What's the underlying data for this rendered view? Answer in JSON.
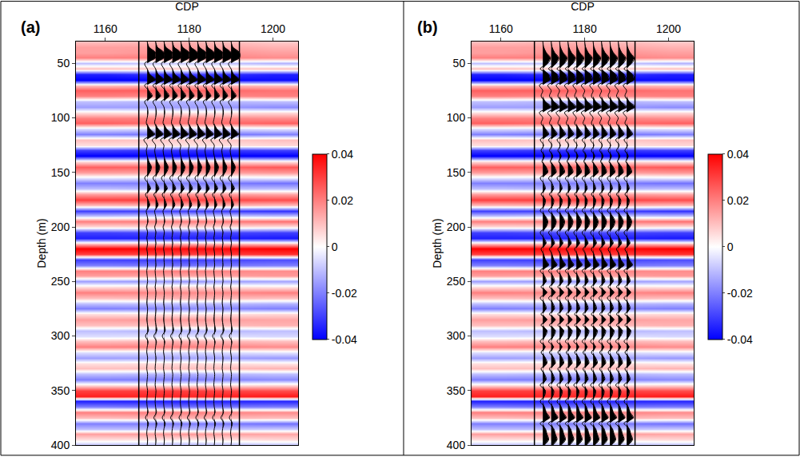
{
  "chart_data": [
    {
      "type": "heatmap",
      "panel": "(a)",
      "x_label": "CDP",
      "y_label": "Depth (m)",
      "xlim": [
        1153,
        1206
      ],
      "xticks": [
        1160,
        1180,
        1200
      ],
      "ylim": [
        400,
        30
      ],
      "yticks": [
        50,
        100,
        150,
        200,
        250,
        300,
        350,
        400
      ],
      "heatmap": {
        "x": [
          1160,
          1180,
          1200
        ],
        "y": [
          30,
          35,
          40,
          45,
          50,
          55,
          60,
          65,
          70,
          75,
          80,
          85,
          90,
          95,
          100,
          105,
          110,
          115,
          120,
          125,
          130,
          135,
          140,
          145,
          150,
          155,
          160,
          165,
          170,
          175,
          180,
          185,
          190,
          195,
          200,
          205,
          210,
          215,
          220,
          225,
          230,
          235,
          240,
          245,
          250,
          255,
          260,
          265,
          270,
          275,
          280,
          285,
          290,
          295,
          300,
          305,
          310,
          315,
          320,
          325,
          330,
          335,
          340,
          345,
          350,
          355,
          360,
          365,
          370,
          375,
          380,
          385,
          390,
          395,
          400
        ],
        "z": [
          [
            0.01,
            0.012,
            0.008
          ],
          [
            0.015,
            0.015,
            0.012
          ],
          [
            0.015,
            0.018,
            0.015
          ],
          [
            0.02,
            0.02,
            0.018
          ],
          [
            -0.01,
            -0.008,
            -0.012
          ],
          [
            0.01,
            0.008,
            0.01
          ],
          [
            -0.035,
            -0.03,
            -0.035
          ],
          [
            -0.04,
            -0.04,
            -0.038
          ],
          [
            0.01,
            0.012,
            0.01
          ],
          [
            0.025,
            0.025,
            0.022
          ],
          [
            0.02,
            0.018,
            0.02
          ],
          [
            -0.01,
            -0.012,
            -0.01
          ],
          [
            -0.015,
            -0.015,
            -0.018
          ],
          [
            0.005,
            0.004,
            0.006
          ],
          [
            0.02,
            0.02,
            0.018
          ],
          [
            0.025,
            0.022,
            0.025
          ],
          [
            -0.005,
            -0.006,
            -0.004
          ],
          [
            -0.02,
            -0.022,
            -0.02
          ],
          [
            0.01,
            0.008,
            0.01
          ],
          [
            0.005,
            0.004,
            0.006
          ],
          [
            -0.03,
            -0.032,
            -0.03
          ],
          [
            -0.04,
            -0.04,
            -0.04
          ],
          [
            0.005,
            0.006,
            0.004
          ],
          [
            0.025,
            0.024,
            0.026
          ],
          [
            0.015,
            0.014,
            0.016
          ],
          [
            -0.005,
            -0.006,
            -0.004
          ],
          [
            -0.02,
            -0.02,
            -0.022
          ],
          [
            -0.01,
            -0.012,
            -0.01
          ],
          [
            0.015,
            0.016,
            0.014
          ],
          [
            0.03,
            0.03,
            0.028
          ],
          [
            0.01,
            0.012,
            0.01
          ],
          [
            -0.03,
            -0.03,
            -0.032
          ],
          [
            -0.01,
            -0.008,
            -0.01
          ],
          [
            0.02,
            0.02,
            0.022
          ],
          [
            0.005,
            0.006,
            0.004
          ],
          [
            -0.03,
            -0.028,
            -0.03
          ],
          [
            -0.035,
            -0.035,
            -0.036
          ],
          [
            0.01,
            0.012,
            0.01
          ],
          [
            0.04,
            0.038,
            0.04
          ],
          [
            0.03,
            0.03,
            0.032
          ],
          [
            -0.03,
            -0.03,
            -0.028
          ],
          [
            -0.02,
            -0.022,
            -0.02
          ],
          [
            0.02,
            0.02,
            0.018
          ],
          [
            0.015,
            0.014,
            0.016
          ],
          [
            -0.015,
            -0.016,
            -0.014
          ],
          [
            0.005,
            0.006,
            0.004
          ],
          [
            0.02,
            0.018,
            0.02
          ],
          [
            0.01,
            0.012,
            0.01
          ],
          [
            -0.01,
            -0.01,
            -0.012
          ],
          [
            -0.02,
            -0.018,
            -0.02
          ],
          [
            0.005,
            0.004,
            0.006
          ],
          [
            0.015,
            0.016,
            0.014
          ],
          [
            0.01,
            0.01,
            0.012
          ],
          [
            -0.01,
            -0.012,
            -0.01
          ],
          [
            -0.005,
            -0.004,
            -0.006
          ],
          [
            0.01,
            0.012,
            0.01
          ],
          [
            0.02,
            0.02,
            0.018
          ],
          [
            -0.005,
            -0.006,
            -0.004
          ],
          [
            -0.015,
            -0.014,
            -0.016
          ],
          [
            0.005,
            0.006,
            0.004
          ],
          [
            0.01,
            0.01,
            0.012
          ],
          [
            -0.01,
            -0.012,
            -0.01
          ],
          [
            -0.02,
            -0.02,
            -0.018
          ],
          [
            0.005,
            0.004,
            0.006
          ],
          [
            0.03,
            0.03,
            0.028
          ],
          [
            0.035,
            0.034,
            0.036
          ],
          [
            -0.035,
            -0.035,
            -0.034
          ],
          [
            -0.02,
            -0.022,
            -0.02
          ],
          [
            0.02,
            0.02,
            0.018
          ],
          [
            0.01,
            0.012,
            0.01
          ],
          [
            -0.02,
            -0.02,
            -0.022
          ],
          [
            -0.01,
            -0.01,
            -0.008
          ],
          [
            0.015,
            0.016,
            0.014
          ],
          [
            0.005,
            0.004,
            0.006
          ],
          [
            -0.01,
            -0.012,
            -0.01
          ]
        ]
      },
      "colorbar_range": [
        -0.04,
        0.04
      ],
      "colorbar_ticks": [
        -0.04,
        -0.02,
        0,
        0.02,
        0.04
      ],
      "box_cdp": [
        1168,
        1192
      ],
      "wiggle_cdps": [
        1170,
        1172,
        1174,
        1176,
        1178,
        1180,
        1182,
        1184,
        1186,
        1188,
        1190
      ],
      "wiggle_values": [
        0,
        0.2,
        1.0,
        1.0,
        -0.3,
        0,
        0.3,
        1.0,
        -0.3,
        0.2,
        0.6,
        -0.3,
        0,
        0.1,
        0,
        -0.1,
        0.3,
        0.9,
        -0.4,
        0,
        -0.1,
        0,
        0.2,
        0.5,
        0.3,
        -0.3,
        0.1,
        0.4,
        -0.2,
        0.1,
        0.3,
        -0.1,
        0,
        0.1,
        -0.1,
        0.05,
        -0.05,
        0.05,
        -0.05,
        0.05,
        0,
        0.05,
        -0.05,
        0,
        0.05,
        -0.05,
        0.05,
        0,
        -0.05,
        0.05,
        0,
        -0.05,
        0.05,
        0.15,
        -0.2,
        0.1,
        0,
        -0.05,
        0.05,
        0,
        -0.05,
        0.05,
        0,
        -0.05,
        0.05,
        0,
        -0.05,
        0,
        0.1,
        -0.2,
        0.15,
        0,
        -0.05,
        0.05,
        0
      ]
    },
    {
      "type": "heatmap",
      "panel": "(b)",
      "x_label": "CDP",
      "y_label": "Depth (m)",
      "xlim": [
        1153,
        1206
      ],
      "xticks": [
        1160,
        1180,
        1200
      ],
      "ylim": [
        400,
        30
      ],
      "yticks": [
        50,
        100,
        150,
        200,
        250,
        300,
        350,
        400
      ],
      "heatmap": {
        "x": [
          1160,
          1180,
          1200
        ],
        "y": [
          30,
          35,
          40,
          45,
          50,
          55,
          60,
          65,
          70,
          75,
          80,
          85,
          90,
          95,
          100,
          105,
          110,
          115,
          120,
          125,
          130,
          135,
          140,
          145,
          150,
          155,
          160,
          165,
          170,
          175,
          180,
          185,
          190,
          195,
          200,
          205,
          210,
          215,
          220,
          225,
          230,
          235,
          240,
          245,
          250,
          255,
          260,
          265,
          270,
          275,
          280,
          285,
          290,
          295,
          300,
          305,
          310,
          315,
          320,
          325,
          330,
          335,
          340,
          345,
          350,
          355,
          360,
          365,
          370,
          375,
          380,
          385,
          390,
          395,
          400
        ],
        "z": [
          [
            0.01,
            0.012,
            0.008
          ],
          [
            0.015,
            0.015,
            0.012
          ],
          [
            0.015,
            0.018,
            0.015
          ],
          [
            0.02,
            0.02,
            0.018
          ],
          [
            -0.01,
            -0.008,
            -0.012
          ],
          [
            0.01,
            0.008,
            0.01
          ],
          [
            -0.035,
            -0.03,
            -0.035
          ],
          [
            -0.04,
            -0.04,
            -0.038
          ],
          [
            0.01,
            0.012,
            0.01
          ],
          [
            0.025,
            0.025,
            0.022
          ],
          [
            0.02,
            0.018,
            0.02
          ],
          [
            -0.01,
            -0.012,
            -0.01
          ],
          [
            -0.015,
            -0.015,
            -0.018
          ],
          [
            0.005,
            0.004,
            0.006
          ],
          [
            0.02,
            0.02,
            0.018
          ],
          [
            0.025,
            0.022,
            0.025
          ],
          [
            -0.005,
            -0.006,
            -0.004
          ],
          [
            -0.02,
            -0.022,
            -0.02
          ],
          [
            0.01,
            0.008,
            0.01
          ],
          [
            0.005,
            0.004,
            0.006
          ],
          [
            -0.03,
            -0.032,
            -0.03
          ],
          [
            -0.04,
            -0.04,
            -0.04
          ],
          [
            0.005,
            0.006,
            0.004
          ],
          [
            0.025,
            0.024,
            0.026
          ],
          [
            0.015,
            0.014,
            0.016
          ],
          [
            -0.005,
            -0.006,
            -0.004
          ],
          [
            -0.02,
            -0.02,
            -0.022
          ],
          [
            -0.01,
            -0.012,
            -0.01
          ],
          [
            0.015,
            0.016,
            0.014
          ],
          [
            0.03,
            0.03,
            0.028
          ],
          [
            0.01,
            0.012,
            0.01
          ],
          [
            -0.03,
            -0.03,
            -0.032
          ],
          [
            -0.01,
            -0.008,
            -0.01
          ],
          [
            0.02,
            0.02,
            0.022
          ],
          [
            0.005,
            0.006,
            0.004
          ],
          [
            -0.03,
            -0.028,
            -0.03
          ],
          [
            -0.035,
            -0.035,
            -0.036
          ],
          [
            0.01,
            0.012,
            0.01
          ],
          [
            0.04,
            0.038,
            0.04
          ],
          [
            0.03,
            0.03,
            0.032
          ],
          [
            -0.03,
            -0.03,
            -0.028
          ],
          [
            -0.02,
            -0.022,
            -0.02
          ],
          [
            0.02,
            0.02,
            0.018
          ],
          [
            0.015,
            0.014,
            0.016
          ],
          [
            -0.015,
            -0.016,
            -0.014
          ],
          [
            0.005,
            0.006,
            0.004
          ],
          [
            0.02,
            0.018,
            0.02
          ],
          [
            0.01,
            0.012,
            0.01
          ],
          [
            -0.01,
            -0.01,
            -0.012
          ],
          [
            -0.02,
            -0.018,
            -0.02
          ],
          [
            0.005,
            0.004,
            0.006
          ],
          [
            0.015,
            0.016,
            0.014
          ],
          [
            0.01,
            0.01,
            0.012
          ],
          [
            -0.01,
            -0.012,
            -0.01
          ],
          [
            -0.005,
            -0.004,
            -0.006
          ],
          [
            0.01,
            0.012,
            0.01
          ],
          [
            0.02,
            0.02,
            0.018
          ],
          [
            -0.005,
            -0.006,
            -0.004
          ],
          [
            -0.015,
            -0.014,
            -0.016
          ],
          [
            0.005,
            0.006,
            0.004
          ],
          [
            0.01,
            0.01,
            0.012
          ],
          [
            -0.01,
            -0.012,
            -0.01
          ],
          [
            -0.02,
            -0.02,
            -0.018
          ],
          [
            0.005,
            0.004,
            0.006
          ],
          [
            0.03,
            0.03,
            0.028
          ],
          [
            0.035,
            0.034,
            0.036
          ],
          [
            -0.035,
            -0.035,
            -0.034
          ],
          [
            -0.02,
            -0.022,
            -0.02
          ],
          [
            0.02,
            0.02,
            0.018
          ],
          [
            0.01,
            0.012,
            0.01
          ],
          [
            -0.02,
            -0.02,
            -0.022
          ],
          [
            -0.01,
            -0.01,
            -0.008
          ],
          [
            0.015,
            0.016,
            0.014
          ],
          [
            0.005,
            0.004,
            0.006
          ],
          [
            -0.01,
            -0.012,
            -0.01
          ]
        ]
      },
      "colorbar_range": [
        -0.04,
        0.04
      ],
      "colorbar_ticks": [
        -0.04,
        -0.02,
        0,
        0.02,
        0.04
      ],
      "box_cdp": [
        1168,
        1192
      ],
      "wiggle_cdps": [
        1170,
        1172,
        1174,
        1176,
        1178,
        1180,
        1182,
        1184,
        1186,
        1188,
        1190
      ],
      "wiggle_values": [
        0,
        0.1,
        0.4,
        0.9,
        0.6,
        -0.3,
        0.7,
        0.9,
        -0.4,
        0,
        -0.2,
        0.3,
        1.0,
        -0.4,
        0,
        -0.2,
        0.3,
        0.7,
        -0.3,
        0.1,
        -0.2,
        0.2,
        -0.1,
        0.4,
        0.6,
        -0.3,
        0.1,
        0.3,
        -0.2,
        0.3,
        0.2,
        -0.3,
        0.3,
        0.6,
        0.4,
        -0.3,
        0.1,
        0.4,
        -0.2,
        0.1,
        0.3,
        0.7,
        -0.3,
        0.2,
        0.4,
        -0.2,
        0.5,
        -0.3,
        0.2,
        0.4,
        -0.2,
        0.5,
        -0.2,
        0.5,
        0.3,
        -0.3,
        0.3,
        -0.2,
        0.3,
        0.5,
        -0.2,
        0.2,
        0.4,
        -0.3,
        0.3,
        0.2,
        -0.3,
        0.2,
        0.4,
        0.8,
        -0.3,
        0.3,
        0.5,
        0.7,
        0.2
      ]
    }
  ]
}
